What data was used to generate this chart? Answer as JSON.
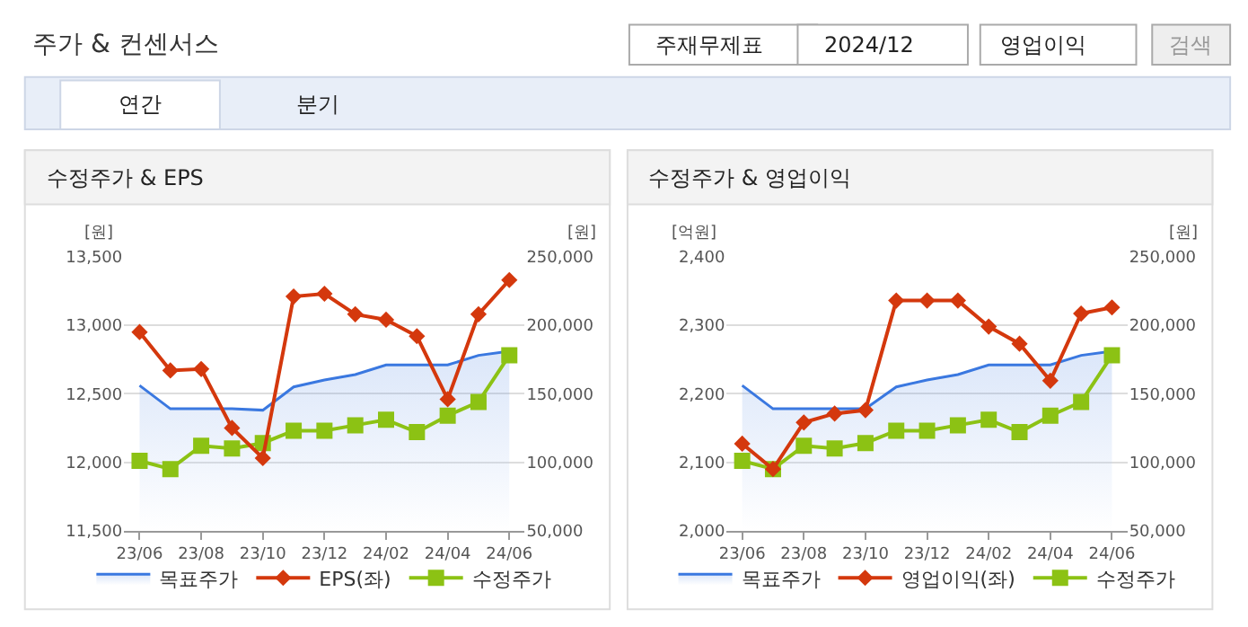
{
  "chart_data": [
    {
      "type": "other",
      "title": "주가 & 컨센서스",
      "annotations": [
        "주재무제표",
        "2024/12",
        "영업이익",
        "검색",
        "연간",
        "분기"
      ]
    },
    {
      "type": "line",
      "title": "수정주가 & EPS",
      "ylabel": "[원]",
      "y2label": "[원]",
      "categories": [
        "23/06",
        null,
        "23/08",
        null,
        "23/10",
        null,
        "23/12",
        null,
        "24/02",
        null,
        "24/04",
        null,
        "24/06"
      ],
      "series": [
        {
          "name": "목표주가",
          "type": "area",
          "axis": "y2",
          "color": "#3a78e0",
          "marker": "none",
          "values": [
            156000,
            139000,
            139000,
            139000,
            138000,
            155000,
            160000,
            164000,
            171000,
            171000,
            171000,
            178000,
            181000
          ]
        },
        {
          "name": "EPS(좌)",
          "type": "line",
          "color": "#d4380d",
          "marker": "diamond",
          "values": [
            12950,
            12670,
            12680,
            12250,
            12030,
            13210,
            13230,
            13080,
            13040,
            12920,
            12460,
            13080,
            13330
          ]
        },
        {
          "name": "수정주가",
          "type": "line",
          "axis": "y2",
          "color": "#8cc214",
          "marker": "square",
          "values": [
            101000,
            95000,
            112000,
            110000,
            114000,
            123000,
            123000,
            127000,
            131000,
            122000,
            134000,
            144000,
            178000
          ]
        }
      ],
      "ylim": [
        11500,
        13500
      ],
      "yticks": [
        {
          "value": 11500,
          "label": "11,500"
        },
        {
          "value": 12000,
          "label": "12,000"
        },
        {
          "value": 12500,
          "label": "12,500"
        },
        {
          "value": 13000,
          "label": "13,000"
        },
        {
          "value": 13500,
          "label": "13,500"
        }
      ],
      "y2lim": [
        50000,
        250000
      ],
      "y2ticks": [
        {
          "value": 50000,
          "label": "50,000"
        },
        {
          "value": 100000,
          "label": "100,000"
        },
        {
          "value": 150000,
          "label": "150,000"
        },
        {
          "value": 200000,
          "label": "200,000"
        },
        {
          "value": 250000,
          "label": "250,000"
        }
      ],
      "grid": "y",
      "legend": "bottom"
    },
    {
      "type": "line",
      "title": "수정주가 & 영업이익",
      "ylabel": "[억원]",
      "y2label": "[원]",
      "categories": [
        "23/06",
        null,
        "23/08",
        null,
        "23/10",
        null,
        "23/12",
        null,
        "24/02",
        null,
        "24/04",
        null,
        "24/06"
      ],
      "series": [
        {
          "name": "목표주가",
          "type": "area",
          "axis": "y2",
          "color": "#3a78e0",
          "marker": "none",
          "values": [
            156000,
            139000,
            139000,
            139000,
            139000,
            155000,
            160000,
            164000,
            171000,
            171000,
            171000,
            178000,
            181000
          ]
        },
        {
          "name": "영업이익(좌)",
          "type": "line",
          "color": "#d4380d",
          "marker": "diamond",
          "values": [
            2127,
            2090,
            2158,
            2171,
            2176,
            2336,
            2336,
            2336,
            2298,
            2273,
            2219,
            2317,
            2326
          ]
        },
        {
          "name": "수정주가",
          "type": "line",
          "axis": "y2",
          "color": "#8cc214",
          "marker": "square",
          "values": [
            101000,
            95000,
            112000,
            110000,
            114000,
            123000,
            123000,
            127000,
            131000,
            122000,
            134000,
            144000,
            178000
          ]
        }
      ],
      "ylim": [
        2000,
        2400
      ],
      "yticks": [
        {
          "value": 2000,
          "label": "2,000"
        },
        {
          "value": 2100,
          "label": "2,100"
        },
        {
          "value": 2200,
          "label": "2,200"
        },
        {
          "value": 2300,
          "label": "2,300"
        },
        {
          "value": 2400,
          "label": "2,400"
        }
      ],
      "y2lim": [
        50000,
        250000
      ],
      "y2ticks": [
        {
          "value": 50000,
          "label": "50,000"
        },
        {
          "value": 100000,
          "label": "100,000"
        },
        {
          "value": 150000,
          "label": "150,000"
        },
        {
          "value": 200000,
          "label": "200,000"
        },
        {
          "value": 250000,
          "label": "250,000"
        }
      ],
      "grid": "y",
      "legend": "bottom"
    }
  ]
}
